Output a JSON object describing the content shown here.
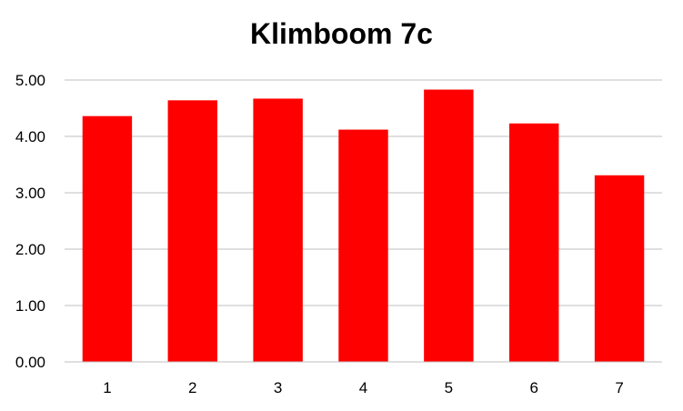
{
  "chart_data": {
    "type": "bar",
    "title": "Klimboom 7c",
    "categories": [
      "1",
      "2",
      "3",
      "4",
      "5",
      "6",
      "7"
    ],
    "values": [
      4.36,
      4.64,
      4.67,
      4.12,
      4.83,
      4.23,
      3.31
    ],
    "ylim": [
      0,
      5
    ],
    "yticks": [
      "0.00",
      "1.00",
      "2.00",
      "3.00",
      "4.00",
      "5.00"
    ],
    "ytick_values": [
      0,
      1,
      2,
      3,
      4,
      5
    ],
    "xlabel": "",
    "ylabel": "",
    "grid": true,
    "legend": "none",
    "bar_color": "#ff0000",
    "grid_color": "#bfbfbf",
    "axis_color": "#bfbfbf"
  }
}
